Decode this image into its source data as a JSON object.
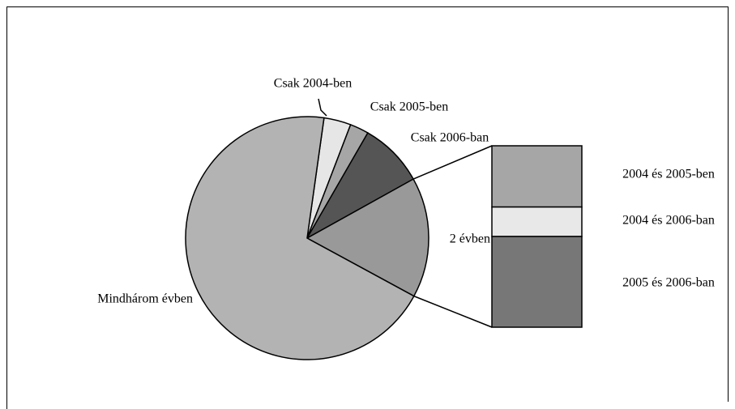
{
  "chart_data": {
    "type": "pie-of-bar",
    "categories": [
      "Csak 2004-ben",
      "Csak 2005-ben",
      "Csak 2006-ban",
      "2 évben",
      "Mindhárom évben"
    ],
    "values": [
      3.6,
      2.5,
      8.6,
      16,
      69.3
    ],
    "colors": [
      "#e6e6e6",
      "#a6a6a6",
      "#555555",
      "#999999",
      "#b3b3b3"
    ],
    "bar": {
      "categories": [
        "2004 és 2005-ben",
        "2004 és 2006-ban",
        "2005 és 2006-ban"
      ],
      "values": [
        5.4,
        2.6,
        8
      ],
      "colors": [
        "#a6a6a6",
        "#e8e8e8",
        "#777777"
      ]
    }
  }
}
